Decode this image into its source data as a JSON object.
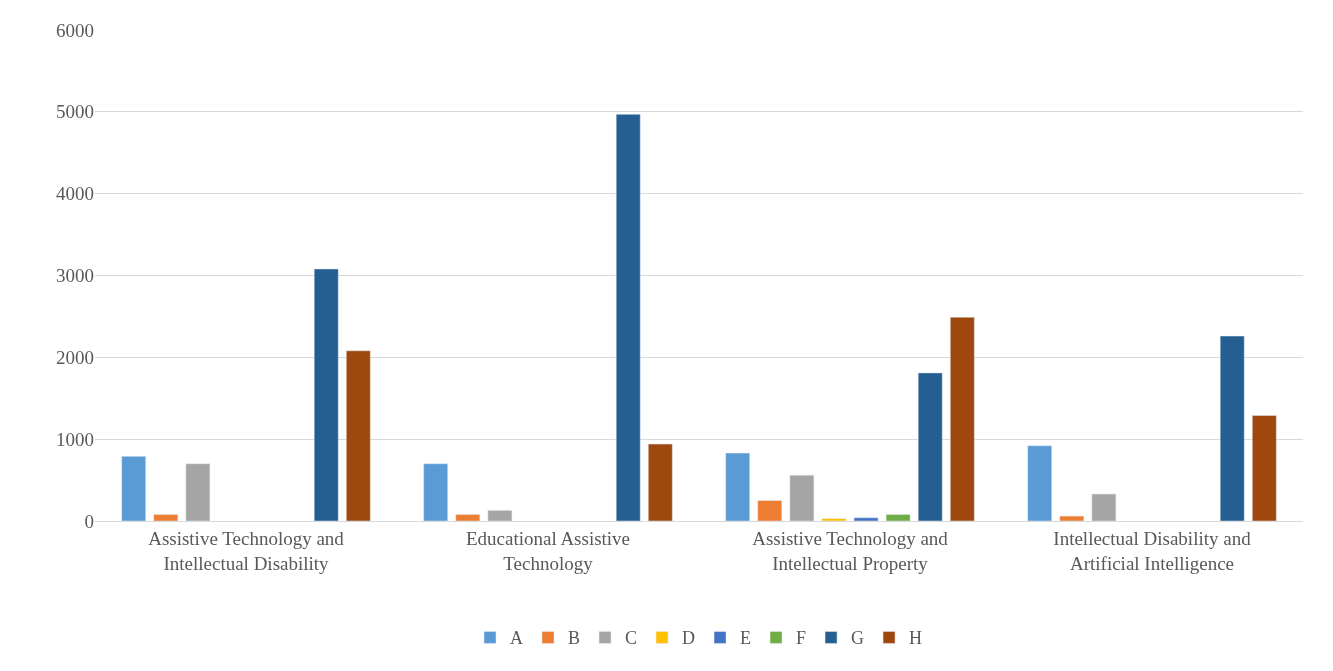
{
  "chart_data": {
    "type": "bar",
    "categories": [
      "Assistive Technology and Intellectual Disability",
      "Educational Assistive Technology",
      "Assistive Technology and Intellectual Property",
      "Intellectual Disability and Artificial Intelligence"
    ],
    "series": [
      {
        "name": "A",
        "color": "#5b9bd5",
        "values": [
          790,
          700,
          830,
          920
        ]
      },
      {
        "name": "B",
        "color": "#ed7d31",
        "values": [
          80,
          80,
          250,
          60
        ]
      },
      {
        "name": "C",
        "color": "#a5a5a5",
        "values": [
          700,
          130,
          560,
          330
        ]
      },
      {
        "name": "D",
        "color": "#ffc000",
        "values": [
          null,
          null,
          30,
          null
        ]
      },
      {
        "name": "E",
        "color": "#4472c4",
        "values": [
          null,
          null,
          40,
          null
        ]
      },
      {
        "name": "F",
        "color": "#70ad47",
        "values": [
          null,
          null,
          80,
          null
        ]
      },
      {
        "name": "G",
        "color": "#255e91",
        "values": [
          3080,
          4970,
          1810,
          2260
        ]
      },
      {
        "name": "H",
        "color": "#9e480e",
        "values": [
          2080,
          940,
          2490,
          1290
        ]
      }
    ],
    "ylim": [
      0,
      6000
    ],
    "yticks": [
      0,
      1000,
      2000,
      3000,
      4000,
      5000,
      6000
    ],
    "grid": "y",
    "legend": "bottom"
  }
}
